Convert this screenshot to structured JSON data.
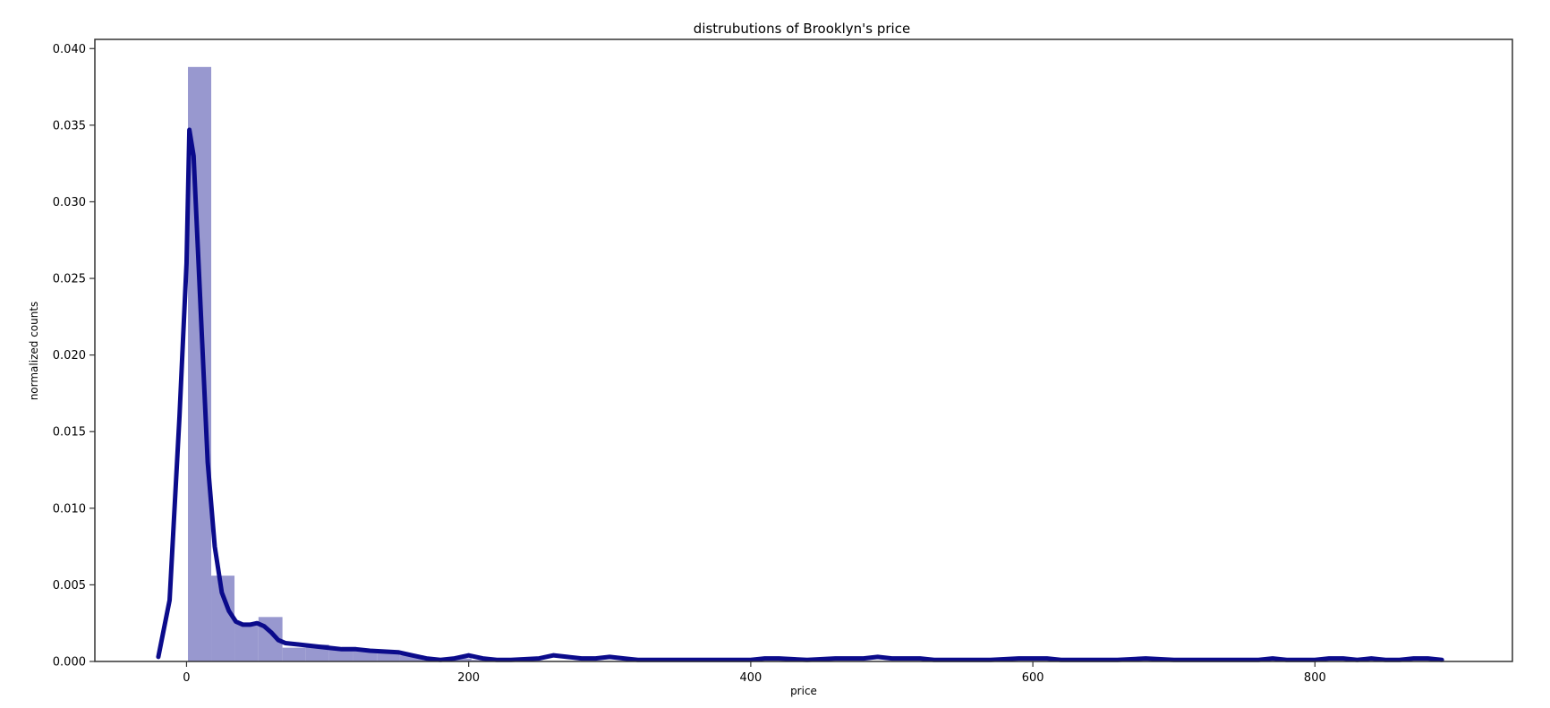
{
  "chart_data": {
    "type": "histogram",
    "title": "distrubutions of Brooklyn's price",
    "xlabel": "price",
    "ylabel": "normalized counts",
    "xlim": [
      -65,
      940
    ],
    "ylim": [
      0,
      0.0406
    ],
    "x_ticks": [
      0,
      200,
      400,
      600,
      800
    ],
    "y_ticks": [
      0.0,
      0.005,
      0.01,
      0.015,
      0.02,
      0.025,
      0.03,
      0.035,
      0.04
    ],
    "y_tick_labels": [
      "0.000",
      "0.005",
      "0.010",
      "0.015",
      "0.020",
      "0.025",
      "0.030",
      "0.035",
      "0.040"
    ],
    "grid": false,
    "legend": "none",
    "histogram_bins": [
      {
        "x0": 1,
        "x1": 17.5,
        "density": 0.0388
      },
      {
        "x0": 17.5,
        "x1": 34,
        "density": 0.0056
      },
      {
        "x0": 34,
        "x1": 51,
        "density": 0.0025
      },
      {
        "x0": 51,
        "x1": 68,
        "density": 0.0029
      },
      {
        "x0": 68,
        "x1": 84.5,
        "density": 0.0009
      },
      {
        "x0": 84.5,
        "x1": 101,
        "density": 0.0011
      },
      {
        "x0": 101,
        "x1": 118,
        "density": 0.0008
      },
      {
        "x0": 118,
        "x1": 135,
        "density": 0.0007
      },
      {
        "x0": 135,
        "x1": 151,
        "density": 0.0006
      },
      {
        "x0": 151,
        "x1": 168,
        "density": 0.0004
      },
      {
        "x0": 168,
        "x1": 185,
        "density": 0.0002
      },
      {
        "x0": 185,
        "x1": 202,
        "density": 0.0002
      },
      {
        "x0": 202,
        "x1": 218,
        "density": 0.0001
      }
    ],
    "kde": {
      "x": [
        -20,
        -12,
        -5,
        0,
        2,
        5,
        8,
        12,
        15,
        20,
        25,
        30,
        35,
        40,
        45,
        50,
        55,
        60,
        65,
        70,
        80,
        90,
        100,
        110,
        120,
        130,
        150,
        160,
        170,
        180,
        190,
        200,
        210,
        220,
        230,
        250,
        260,
        270,
        280,
        290,
        300,
        310,
        320,
        340,
        360,
        380,
        400,
        410,
        420,
        440,
        460,
        480,
        490,
        500,
        520,
        530,
        550,
        570,
        590,
        600,
        610,
        620,
        640,
        660,
        680,
        700,
        720,
        740,
        760,
        770,
        780,
        800,
        810,
        820,
        830,
        840,
        850,
        860,
        870,
        880,
        890
      ],
      "y": [
        0.0003,
        0.004,
        0.016,
        0.026,
        0.0347,
        0.033,
        0.027,
        0.019,
        0.013,
        0.0075,
        0.0045,
        0.0033,
        0.0026,
        0.0024,
        0.0024,
        0.0025,
        0.0023,
        0.0019,
        0.0014,
        0.0012,
        0.0011,
        0.001,
        0.0009,
        0.0008,
        0.0008,
        0.0007,
        0.0006,
        0.0004,
        0.0002,
        0.0001,
        0.0002,
        0.0004,
        0.0002,
        0.0001,
        0.0001,
        0.0002,
        0.0004,
        0.0003,
        0.0002,
        0.0002,
        0.0003,
        0.0002,
        0.0001,
        0.0001,
        0.0001,
        0.0001,
        0.0001,
        0.0002,
        0.0002,
        0.0001,
        0.0002,
        0.0002,
        0.0003,
        0.0002,
        0.0002,
        0.0001,
        0.0001,
        0.0001,
        0.0002,
        0.0002,
        0.0002,
        0.0001,
        0.0001,
        0.0001,
        0.0002,
        0.0001,
        0.0001,
        0.0001,
        0.0001,
        0.0002,
        0.0001,
        0.0001,
        0.0002,
        0.0002,
        0.0001,
        0.0002,
        0.0001,
        0.0001,
        0.0002,
        0.0002,
        0.0001
      ]
    },
    "colors": {
      "bar": "#9898cf",
      "kde": "#0b0b8b",
      "axes": "#333333"
    }
  }
}
